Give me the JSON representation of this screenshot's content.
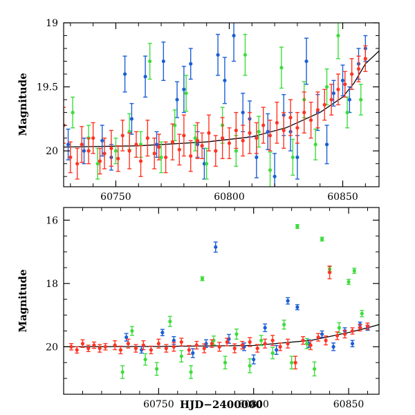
{
  "chart_data": [
    {
      "type": "scatter",
      "panel": "top",
      "title": "",
      "xlabel": "",
      "ylabel": "Magnitude",
      "xlim": [
        60727,
        60866
      ],
      "ylim": [
        20.28,
        19.0
      ],
      "y_inverted": true,
      "x_ticks": [
        60750,
        60800,
        60850
      ],
      "x_tick_labels": [
        "60750",
        "60800",
        "60850"
      ],
      "y_ticks": [
        19,
        19.5,
        20
      ],
      "y_tick_labels": [
        "19",
        "19.5",
        "20"
      ],
      "grid": false,
      "legend": "none",
      "model_curve": {
        "color": "#000000",
        "x": [
          60727,
          60760,
          60790,
          60810,
          60825,
          60840,
          60850,
          60855,
          60860,
          60866
        ],
        "y": [
          19.97,
          19.96,
          19.93,
          19.89,
          19.82,
          19.7,
          19.58,
          19.47,
          19.32,
          19.22
        ]
      },
      "series": [
        {
          "color": "#1a5fd6",
          "x": [
            60729,
            60736,
            60744,
            60748,
            60754,
            60757,
            60763,
            60768,
            60771,
            60777,
            60780,
            60783,
            60786,
            60789,
            60795,
            60798,
            60802,
            60806,
            60809,
            60812,
            60817,
            60820,
            60824,
            60827,
            60830,
            60834,
            60839,
            60843,
            60846,
            60850,
            60853,
            60857,
            60860
          ],
          "y": [
            19.95,
            20.0,
            19.92,
            20.05,
            19.4,
            19.75,
            19.42,
            19.95,
            19.3,
            19.6,
            19.52,
            19.32,
            19.95,
            20.1,
            19.25,
            19.45,
            19.1,
            19.7,
            19.75,
            20.05,
            19.85,
            20.2,
            19.72,
            19.85,
            20.05,
            19.3,
            19.7,
            19.95,
            19.55,
            19.45,
            19.6,
            19.32,
            19.2
          ],
          "err": [
            0.12,
            0.1,
            0.12,
            0.1,
            0.14,
            0.12,
            0.16,
            0.1,
            0.15,
            0.14,
            0.18,
            0.12,
            0.1,
            0.12,
            0.16,
            0.18,
            0.2,
            0.15,
            0.14,
            0.16,
            0.14,
            0.18,
            0.16,
            0.15,
            0.17,
            0.18,
            0.14,
            0.15,
            0.1,
            0.12,
            0.1,
            0.12,
            0.1
          ]
        },
        {
          "color": "#3ddc3d",
          "x": [
            60731,
            60738,
            60742,
            60750,
            60756,
            60761,
            60765,
            60770,
            60776,
            60781,
            60785,
            60790,
            60797,
            60803,
            60807,
            60813,
            60818,
            60823,
            60828,
            60833,
            60838,
            60843,
            60848,
            60852,
            60858
          ],
          "y": [
            19.7,
            19.9,
            20.1,
            20.0,
            19.85,
            19.95,
            19.3,
            20.05,
            19.8,
            19.55,
            19.9,
            20.1,
            19.8,
            20.0,
            19.25,
            19.85,
            20.15,
            19.35,
            20.05,
            19.6,
            19.95,
            19.5,
            19.1,
            19.7,
            19.6
          ],
          "err": [
            0.12,
            0.1,
            0.12,
            0.1,
            0.14,
            0.1,
            0.14,
            0.12,
            0.12,
            0.14,
            0.1,
            0.12,
            0.14,
            0.12,
            0.16,
            0.12,
            0.14,
            0.16,
            0.14,
            0.14,
            0.12,
            0.14,
            0.18,
            0.12,
            0.12
          ]
        },
        {
          "color": "#ff3322",
          "x": [
            60727,
            60730,
            60733,
            60735,
            60738,
            60740,
            60743,
            60745,
            60748,
            60751,
            60753,
            60756,
            60759,
            60761,
            60764,
            60767,
            60769,
            60772,
            60775,
            60778,
            60780,
            60783,
            60786,
            60788,
            60791,
            60794,
            60797,
            60800,
            60803,
            60806,
            60809,
            60812,
            60815,
            60818,
            60821,
            60824,
            60827,
            60830,
            60833,
            60836,
            60839,
            60842,
            60845,
            60848,
            60851,
            60854,
            60857,
            60860
          ],
          "y": [
            19.8,
            20.05,
            20.1,
            19.95,
            20.0,
            19.9,
            20.08,
            20.02,
            19.98,
            20.06,
            19.88,
            20.0,
            19.95,
            20.08,
            19.9,
            20.02,
            19.97,
            20.05,
            19.93,
            19.99,
            19.88,
            20.04,
            19.92,
            19.96,
            19.86,
            20.0,
            19.9,
            19.94,
            19.84,
            19.92,
            19.86,
            19.9,
            19.8,
            19.88,
            19.78,
            19.84,
            19.74,
            19.82,
            19.7,
            19.76,
            19.68,
            19.64,
            19.6,
            19.52,
            19.48,
            19.4,
            19.36,
            19.28
          ],
          "err": [
            0.14,
            0.12,
            0.12,
            0.14,
            0.1,
            0.12,
            0.1,
            0.12,
            0.14,
            0.1,
            0.12,
            0.14,
            0.1,
            0.12,
            0.14,
            0.12,
            0.1,
            0.12,
            0.14,
            0.12,
            0.16,
            0.12,
            0.14,
            0.1,
            0.14,
            0.12,
            0.16,
            0.12,
            0.14,
            0.12,
            0.16,
            0.12,
            0.14,
            0.12,
            0.16,
            0.14,
            0.14,
            0.12,
            0.16,
            0.14,
            0.14,
            0.12,
            0.12,
            0.12,
            0.1,
            0.12,
            0.1,
            0.1
          ]
        }
      ]
    },
    {
      "type": "scatter",
      "panel": "bottom",
      "title": "",
      "xlabel": "HJD−2400000",
      "ylabel": "Magnitude",
      "xlim": [
        60700,
        60866
      ],
      "ylim": [
        21.5,
        15.6
      ],
      "y_inverted": true,
      "x_ticks": [
        60750,
        60800,
        60850
      ],
      "x_tick_labels": [
        "60750",
        "60800",
        "60850"
      ],
      "y_ticks": [
        16,
        18,
        20
      ],
      "y_tick_labels": [
        "16",
        "18",
        "20"
      ],
      "grid": false,
      "legend": "none",
      "model_curve": {
        "color": "#000000",
        "x": [
          60700,
          60750,
          60800,
          60830,
          60850,
          60860,
          60866
        ],
        "y": [
          20.0,
          19.99,
          19.96,
          19.8,
          19.55,
          19.4,
          19.3
        ]
      },
      "series": [
        {
          "color": "#1a5fd6",
          "x": [
            60733,
            60741,
            60752,
            60758,
            60768,
            60775,
            60780,
            60787,
            60795,
            60800,
            60806,
            60812,
            60818,
            60823,
            60829,
            60836,
            60842,
            60848,
            60852,
            60856,
            60860
          ],
          "y": [
            19.7,
            20.1,
            19.55,
            19.8,
            20.2,
            19.9,
            16.85,
            19.75,
            20.0,
            20.4,
            19.4,
            20.1,
            18.55,
            18.75,
            19.9,
            19.6,
            20.0,
            19.5,
            19.9,
            19.3,
            19.4
          ],
          "err": [
            0.12,
            0.1,
            0.1,
            0.12,
            0.14,
            0.12,
            0.16,
            0.14,
            0.12,
            0.14,
            0.12,
            0.14,
            0.1,
            0.08,
            0.12,
            0.1,
            0.12,
            0.1,
            0.1,
            0.08,
            0.08
          ]
        },
        {
          "color": "#3ddc3d",
          "x": [
            60731,
            60736,
            60743,
            60749,
            60756,
            60762,
            60767,
            60773,
            60779,
            60785,
            60791,
            60798,
            60804,
            60810,
            60816,
            60820,
            60823,
            60828,
            60832,
            60836,
            60840,
            60845,
            60850,
            60853,
            60857
          ],
          "y": [
            20.8,
            19.5,
            20.4,
            20.7,
            19.2,
            20.3,
            20.8,
            17.85,
            19.8,
            20.5,
            19.6,
            20.6,
            19.8,
            20.2,
            19.3,
            20.5,
            16.2,
            19.9,
            20.7,
            16.6,
            17.55,
            19.4,
            17.95,
            17.6,
            18.95
          ],
          "err": [
            0.2,
            0.14,
            0.18,
            0.2,
            0.16,
            0.18,
            0.2,
            0.06,
            0.14,
            0.2,
            0.16,
            0.22,
            0.16,
            0.18,
            0.14,
            0.2,
            0.06,
            0.16,
            0.22,
            0.06,
            0.08,
            0.16,
            0.08,
            0.08,
            0.1
          ]
        },
        {
          "color": "#ff3322",
          "x": [
            60704,
            60707,
            60710,
            60713,
            60716,
            60719,
            60722,
            60727,
            60730,
            60734,
            60738,
            60742,
            60746,
            60750,
            60754,
            60758,
            60762,
            60766,
            60770,
            60774,
            60778,
            60782,
            60786,
            60790,
            60794,
            60798,
            60802,
            60806,
            60810,
            60814,
            60818,
            60822,
            60826,
            60830,
            60834,
            60838,
            60840,
            60844,
            60848,
            60852,
            60856,
            60860
          ],
          "y": [
            20.0,
            20.1,
            19.9,
            20.05,
            19.95,
            20.05,
            20.0,
            19.95,
            20.1,
            19.9,
            20.05,
            19.95,
            20.1,
            19.9,
            20.05,
            20.0,
            19.85,
            20.1,
            19.95,
            20.05,
            19.9,
            20.0,
            19.85,
            20.05,
            19.95,
            19.85,
            20.05,
            19.9,
            19.8,
            20.0,
            19.9,
            20.5,
            19.8,
            19.95,
            19.7,
            19.8,
            17.65,
            19.65,
            19.6,
            19.5,
            19.4,
            19.35
          ],
          "err": [
            0.1,
            0.1,
            0.12,
            0.1,
            0.1,
            0.12,
            0.1,
            0.14,
            0.12,
            0.14,
            0.12,
            0.14,
            0.12,
            0.14,
            0.12,
            0.14,
            0.12,
            0.14,
            0.12,
            0.14,
            0.12,
            0.14,
            0.12,
            0.14,
            0.12,
            0.14,
            0.12,
            0.14,
            0.16,
            0.12,
            0.14,
            0.2,
            0.12,
            0.14,
            0.12,
            0.14,
            0.2,
            0.12,
            0.12,
            0.1,
            0.1,
            0.1
          ]
        }
      ]
    }
  ]
}
